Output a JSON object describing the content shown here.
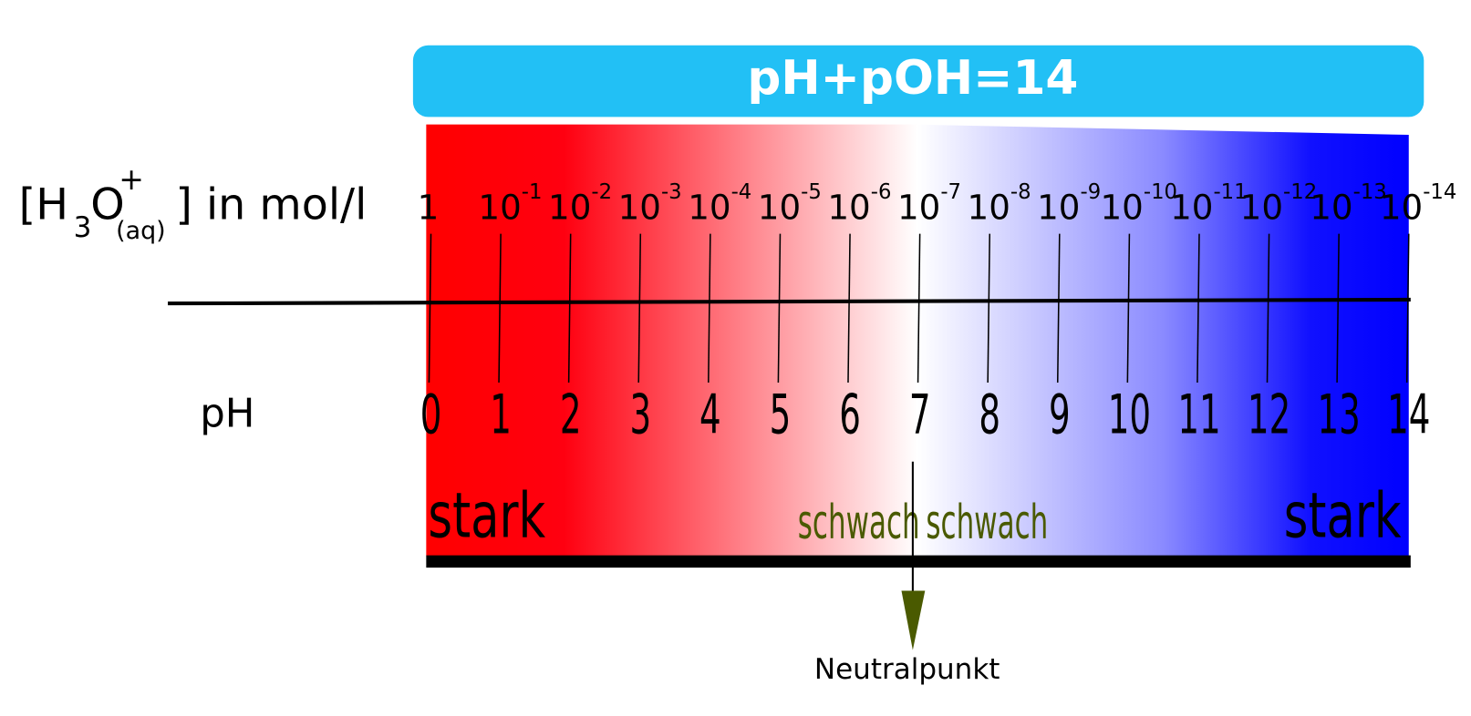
{
  "title": "pH+pOH=14",
  "concentration_label": {
    "open": "[H",
    "subscript": "3",
    "element": "O",
    "charge": "+",
    "state": "(aq)",
    "close": "] in mol/l"
  },
  "concentrations": [
    {
      "base": "1"
    },
    {
      "base": "10",
      "exponent": "-1"
    },
    {
      "base": "10",
      "exponent": "-2"
    },
    {
      "base": "10",
      "exponent": "-3"
    },
    {
      "base": "10",
      "exponent": "-4"
    },
    {
      "base": "10",
      "exponent": "-5"
    },
    {
      "base": "10",
      "exponent": "-6"
    },
    {
      "base": "10",
      "exponent": "-7"
    },
    {
      "base": "10",
      "exponent": "-8"
    },
    {
      "base": "10",
      "exponent": "-9"
    },
    {
      "base": "10",
      "exponent": "-10"
    },
    {
      "base": "10",
      "exponent": "-11"
    },
    {
      "base": "10",
      "exponent": "-12"
    },
    {
      "base": "10",
      "exponent": "-13"
    },
    {
      "base": "10",
      "exponent": "-14"
    }
  ],
  "ph_label": "pH",
  "ph_values": [
    0,
    1,
    2,
    3,
    4,
    5,
    6,
    7,
    8,
    9,
    10,
    11,
    12,
    13,
    14
  ],
  "regions": {
    "strong_acid": "stark",
    "weak_acid": "schwach",
    "weak_base": "schwach",
    "strong_base": "stark"
  },
  "neutral_label": "Neutralpunkt"
}
